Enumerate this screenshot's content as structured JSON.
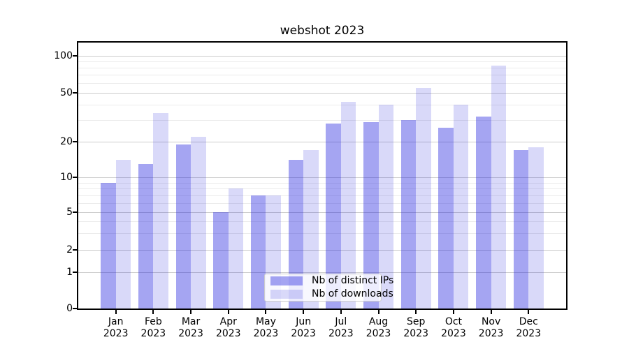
{
  "title": "webshot 2023",
  "chart_data": {
    "type": "bar",
    "title": "webshot 2023",
    "categories": [
      "Jan",
      "Feb",
      "Mar",
      "Apr",
      "May",
      "Jun",
      "Jul",
      "Aug",
      "Sep",
      "Oct",
      "Nov",
      "Dec"
    ],
    "year": "2023",
    "series": [
      {
        "name": "Nb of distinct IPs",
        "color": "rgba(30,30,222,0.40)",
        "values": [
          9,
          13,
          19,
          5,
          7,
          14,
          28,
          29,
          30,
          26,
          32,
          17
        ]
      },
      {
        "name": "Nb of downloads",
        "color": "rgba(30,30,222,0.17)",
        "values": [
          14,
          34,
          22,
          8,
          7,
          17,
          42,
          40,
          55,
          40,
          83,
          18
        ]
      }
    ],
    "xlabel": "",
    "ylabel": "",
    "yscale": "symlog",
    "ylim": [
      0,
      130
    ],
    "yticks": [
      0,
      1,
      2,
      5,
      10,
      20,
      50,
      100
    ],
    "ytick_labels": [
      "0",
      "1",
      "2",
      "5",
      "10",
      "20",
      "50",
      "100"
    ],
    "minor_gridlines": [
      3,
      4,
      6,
      7,
      8,
      9,
      30,
      40,
      60,
      70,
      80,
      90
    ],
    "grid": true,
    "legend_position": "lower center"
  },
  "colors": {
    "major_grid": "#cccccc",
    "minor_grid": "#ebebeb",
    "spine": "#000000",
    "legend_border": "#cccccc"
  }
}
